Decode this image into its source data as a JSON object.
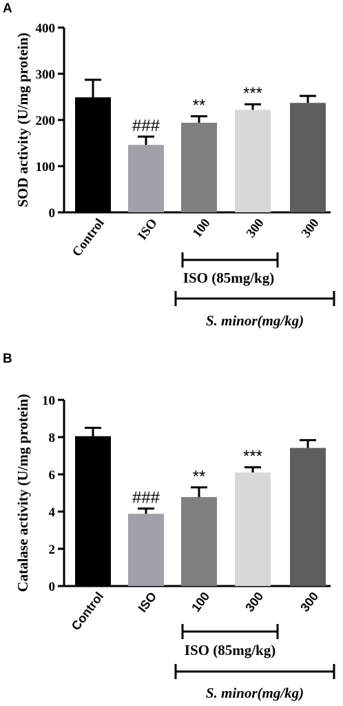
{
  "chart_data": [
    {
      "panel_label": "A",
      "type": "bar",
      "categories": [
        "Control",
        "ISO",
        "100",
        "300",
        "300"
      ],
      "values": [
        249,
        146,
        194,
        222,
        237
      ],
      "errors": [
        38,
        18,
        14,
        12,
        15
      ],
      "annotations": [
        "",
        "###",
        "**",
        "***",
        ""
      ],
      "bar_colors": [
        "#000000",
        "#a0a0a8",
        "#808080",
        "#d8d8d8",
        "#5e5e5e"
      ],
      "ylabel": "SOD activity (U/mg protein)",
      "yticks": [
        "0",
        "100",
        "200",
        "300",
        "400"
      ],
      "ylim": [
        0,
        400
      ],
      "groups": [
        {
          "label": "ISO (85mg/kg)",
          "italic": false,
          "from_index": 2,
          "to_index": 3
        },
        {
          "label": "S. minor(mg/kg)",
          "italic": true,
          "from_index": 1,
          "to_index": 4
        }
      ]
    },
    {
      "panel_label": "B",
      "type": "bar",
      "categories": [
        "Control",
        "ISO",
        "100",
        "300",
        "300"
      ],
      "values": [
        8.05,
        3.88,
        4.78,
        6.1,
        7.42
      ],
      "errors": [
        0.45,
        0.28,
        0.52,
        0.28,
        0.42
      ],
      "annotations": [
        "",
        "###",
        "**",
        "***",
        ""
      ],
      "bar_colors": [
        "#000000",
        "#a0a0a8",
        "#808080",
        "#d8d8d8",
        "#5e5e5e"
      ],
      "ylabel": "Catalase activity (U/mg protein)",
      "yticks": [
        "0",
        "2",
        "4",
        "6",
        "8",
        "10"
      ],
      "ylim": [
        0,
        10
      ],
      "groups": [
        {
          "label": "ISO (85mg/kg)",
          "italic": false,
          "from_index": 2,
          "to_index": 3
        },
        {
          "label": "S. minor(mg/kg)",
          "italic": true,
          "from_index": 1,
          "to_index": 4
        }
      ]
    }
  ]
}
